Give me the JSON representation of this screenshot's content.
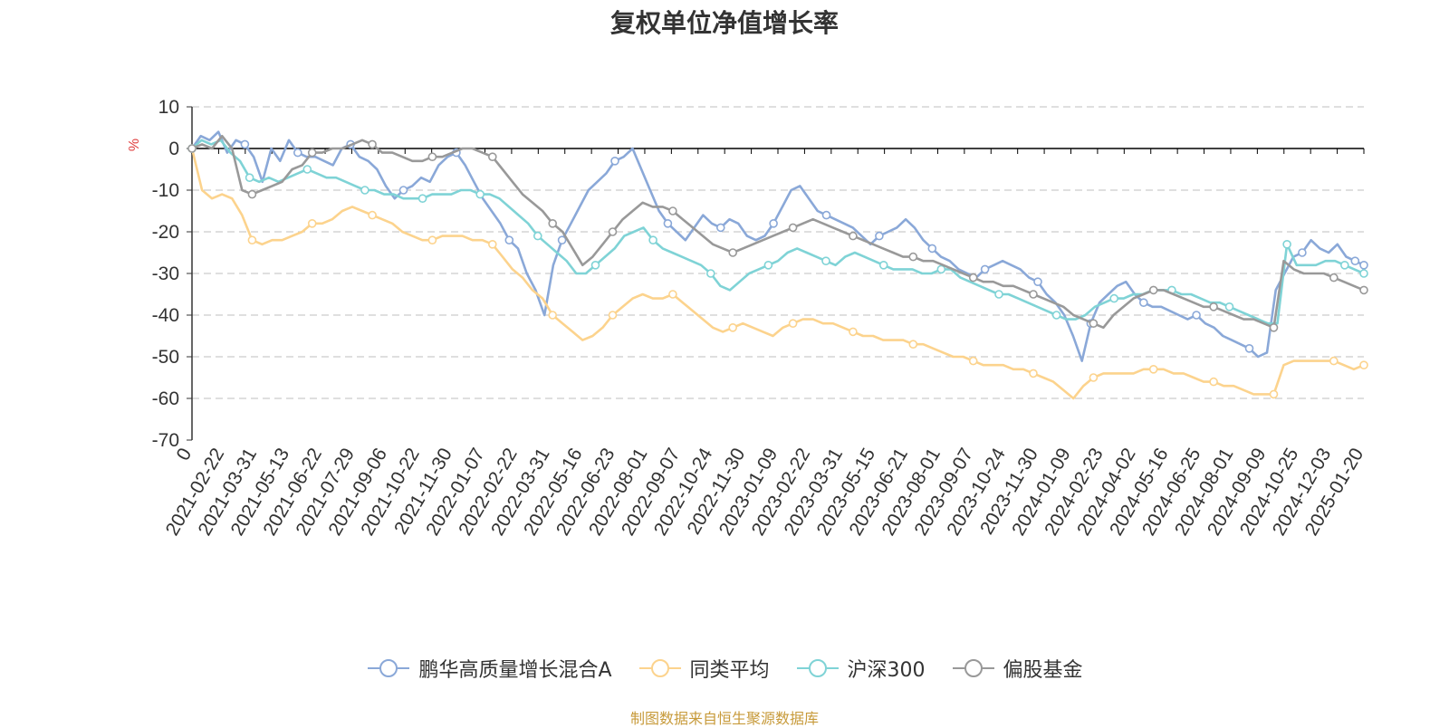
{
  "chart_data": {
    "type": "line",
    "title": "复权单位净值增长率",
    "ylabel": "%",
    "ylim": [
      -70,
      10
    ],
    "yticks": [
      10,
      0,
      -10,
      -20,
      -30,
      -40,
      -50,
      -60,
      -70
    ],
    "x_tick_labels": [
      "0",
      "2021-02-22",
      "2021-03-31",
      "2021-05-13",
      "2021-06-22",
      "2021-07-29",
      "2021-09-06",
      "2021-10-22",
      "2021-11-30",
      "2022-01-07",
      "2022-02-22",
      "2022-03-31",
      "2022-05-16",
      "2022-06-23",
      "2022-08-01",
      "2022-09-07",
      "2022-10-24",
      "2022-11-30",
      "2023-01-09",
      "2023-02-22",
      "2023-03-31",
      "2023-05-15",
      "2023-06-21",
      "2023-08-01",
      "2023-09-07",
      "2023-10-24",
      "2023-11-30",
      "2024-01-09",
      "2024-02-23",
      "2024-04-02",
      "2024-05-16",
      "2024-06-25",
      "2024-08-01",
      "2024-09-09",
      "2024-10-25",
      "2024-12-03",
      "2025-01-20"
    ],
    "grid": true,
    "legend_position": "bottom",
    "series": [
      {
        "name": "鹏华高质量增长混合A",
        "color": "#8aa8d8",
        "values": [
          0,
          3,
          2,
          4,
          -1,
          2,
          1,
          -2,
          -8,
          0,
          -3,
          2,
          -1,
          -2,
          -2,
          -3,
          -4,
          0,
          1,
          -2,
          -3,
          -5,
          -9,
          -12,
          -10,
          -9,
          -7,
          -8,
          -4,
          -2,
          -1,
          -4,
          -8,
          -12,
          -15,
          -18,
          -22,
          -24,
          -30,
          -34,
          -40,
          -28,
          -22,
          -18,
          -14,
          -10,
          -8,
          -6,
          -3,
          -2,
          0,
          -5,
          -10,
          -15,
          -18,
          -20,
          -22,
          -19,
          -16,
          -18,
          -19,
          -17,
          -18,
          -21,
          -22,
          -21,
          -18,
          -14,
          -10,
          -9,
          -12,
          -15,
          -16,
          -17,
          -18,
          -19,
          -21,
          -23,
          -21,
          -20,
          -19,
          -17,
          -19,
          -22,
          -24,
          -26,
          -27,
          -29,
          -30,
          -31,
          -29,
          -28,
          -27,
          -28,
          -29,
          -31,
          -32,
          -35,
          -37,
          -40,
          -45,
          -51,
          -42,
          -37,
          -35,
          -33,
          -32,
          -35,
          -37,
          -38,
          -38,
          -39,
          -40,
          -41,
          -40,
          -42,
          -43,
          -45,
          -46,
          -47,
          -48,
          -50,
          -49,
          -34,
          -30,
          -26,
          -25,
          -22,
          -24,
          -25,
          -23,
          -26,
          -27,
          -28
        ]
      },
      {
        "name": "同类平均",
        "color": "#fcd38d",
        "values": [
          0,
          -10,
          -12,
          -11,
          -12,
          -16,
          -22,
          -23,
          -22,
          -22,
          -21,
          -20,
          -18,
          -18,
          -17,
          -15,
          -14,
          -15,
          -16,
          -17,
          -18,
          -20,
          -21,
          -22,
          -22,
          -21,
          -21,
          -21,
          -22,
          -22,
          -23,
          -26,
          -29,
          -31,
          -34,
          -36,
          -40,
          -42,
          -44,
          -46,
          -45,
          -43,
          -40,
          -38,
          -36,
          -35,
          -36,
          -36,
          -35,
          -37,
          -39,
          -41,
          -43,
          -44,
          -43,
          -42,
          -43,
          -44,
          -45,
          -43,
          -42,
          -41,
          -41,
          -42,
          -42,
          -43,
          -44,
          -45,
          -45,
          -46,
          -46,
          -46,
          -47,
          -47,
          -48,
          -49,
          -50,
          -50,
          -51,
          -52,
          -52,
          -52,
          -53,
          -53,
          -54,
          -55,
          -56,
          -58,
          -60,
          -57,
          -55,
          -54,
          -54,
          -54,
          -54,
          -53,
          -53,
          -53,
          -54,
          -54,
          -55,
          -56,
          -56,
          -57,
          -57,
          -58,
          -59,
          -59,
          -59,
          -52,
          -51,
          -51,
          -51,
          -51,
          -51,
          -52,
          -53,
          -52
        ]
      },
      {
        "name": "沪深300",
        "color": "#7fd3d6",
        "values": [
          0,
          2,
          1,
          2,
          -1,
          -3,
          -7,
          -8,
          -7,
          -8,
          -7,
          -6,
          -5,
          -6,
          -7,
          -7,
          -8,
          -9,
          -10,
          -10,
          -11,
          -11,
          -12,
          -12,
          -12,
          -11,
          -11,
          -11,
          -10,
          -10,
          -11,
          -11,
          -12,
          -14,
          -16,
          -18,
          -21,
          -23,
          -25,
          -27,
          -30,
          -30,
          -28,
          -26,
          -24,
          -21,
          -20,
          -19,
          -22,
          -24,
          -25,
          -26,
          -27,
          -28,
          -30,
          -33,
          -34,
          -32,
          -30,
          -29,
          -28,
          -27,
          -25,
          -24,
          -25,
          -26,
          -27,
          -28,
          -26,
          -25,
          -26,
          -27,
          -28,
          -29,
          -29,
          -29,
          -30,
          -30,
          -29,
          -29,
          -31,
          -32,
          -33,
          -34,
          -35,
          -35,
          -36,
          -37,
          -38,
          -39,
          -40,
          -41,
          -41,
          -40,
          -38,
          -37,
          -36,
          -36,
          -35,
          -35,
          -34,
          -34,
          -34,
          -35,
          -35,
          -36,
          -37,
          -37,
          -38,
          -39,
          -40,
          -41,
          -42,
          -42,
          -23,
          -28,
          -28,
          -28,
          -27,
          -27,
          -28,
          -29,
          -30
        ]
      },
      {
        "name": "偏股基金",
        "color": "#999999",
        "values": [
          0,
          1,
          0,
          3,
          0,
          -10,
          -11,
          -10,
          -9,
          -8,
          -5,
          -4,
          -1,
          -1,
          0,
          0,
          1,
          2,
          1,
          -1,
          -1,
          -2,
          -3,
          -3,
          -2,
          -2,
          -1,
          0,
          0,
          -1,
          -2,
          -5,
          -8,
          -11,
          -13,
          -15,
          -18,
          -20,
          -24,
          -28,
          -26,
          -23,
          -20,
          -17,
          -15,
          -13,
          -14,
          -14,
          -15,
          -17,
          -19,
          -21,
          -23,
          -24,
          -25,
          -24,
          -23,
          -22,
          -21,
          -20,
          -19,
          -18,
          -17,
          -18,
          -19,
          -20,
          -21,
          -22,
          -23,
          -24,
          -25,
          -26,
          -26,
          -27,
          -27,
          -28,
          -29,
          -30,
          -31,
          -32,
          -32,
          -33,
          -33,
          -34,
          -35,
          -36,
          -37,
          -38,
          -40,
          -41,
          -42,
          -43,
          -40,
          -38,
          -36,
          -35,
          -34,
          -34,
          -35,
          -36,
          -37,
          -38,
          -38,
          -39,
          -40,
          -41,
          -41,
          -42,
          -43,
          -27,
          -29,
          -30,
          -30,
          -30,
          -31,
          -32,
          -33,
          -34
        ]
      }
    ]
  },
  "legend": {
    "items": [
      "鹏华高质量增长混合A",
      "同类平均",
      "沪深300",
      "偏股基金"
    ]
  },
  "source_note": "制图数据来自恒生聚源数据库",
  "colors": {
    "source_note": "#c79a3a",
    "ylabel": "#e04040",
    "axis": "#333333",
    "grid": "#cccccc"
  }
}
